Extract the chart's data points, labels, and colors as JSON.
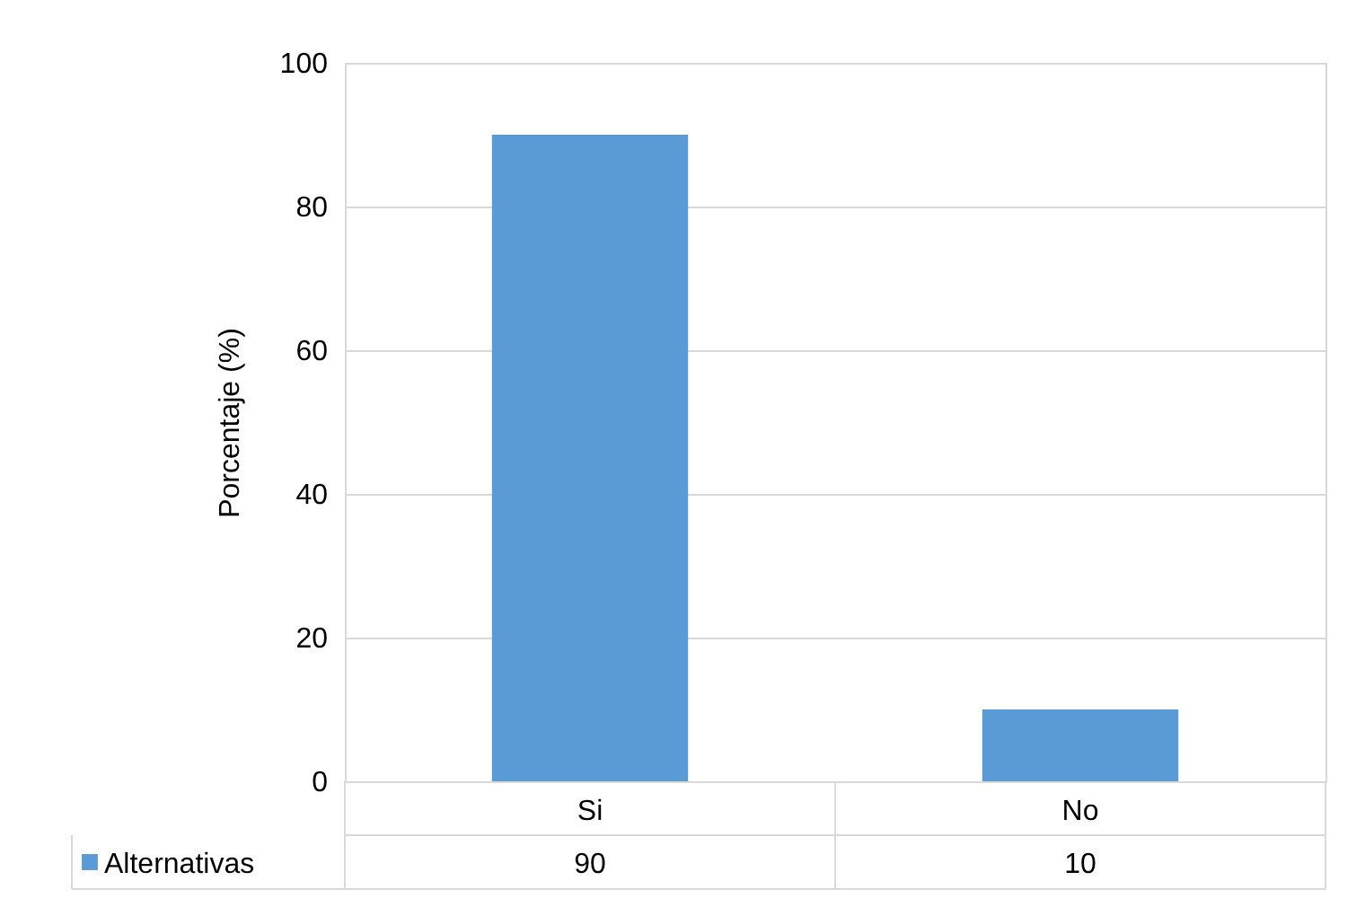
{
  "chart_data": {
    "type": "bar",
    "ylabel": "Porcentaje (%)",
    "categories": [
      "Si",
      "No"
    ],
    "series": [
      {
        "name": "Alternativas",
        "color": "#5b9bd5",
        "values": [
          90,
          10
        ]
      }
    ],
    "ylim": [
      0,
      100
    ],
    "yticks": [
      0,
      20,
      40,
      60,
      80,
      100
    ],
    "grid": "y",
    "data_labels": true,
    "legend": "bottom left"
  }
}
